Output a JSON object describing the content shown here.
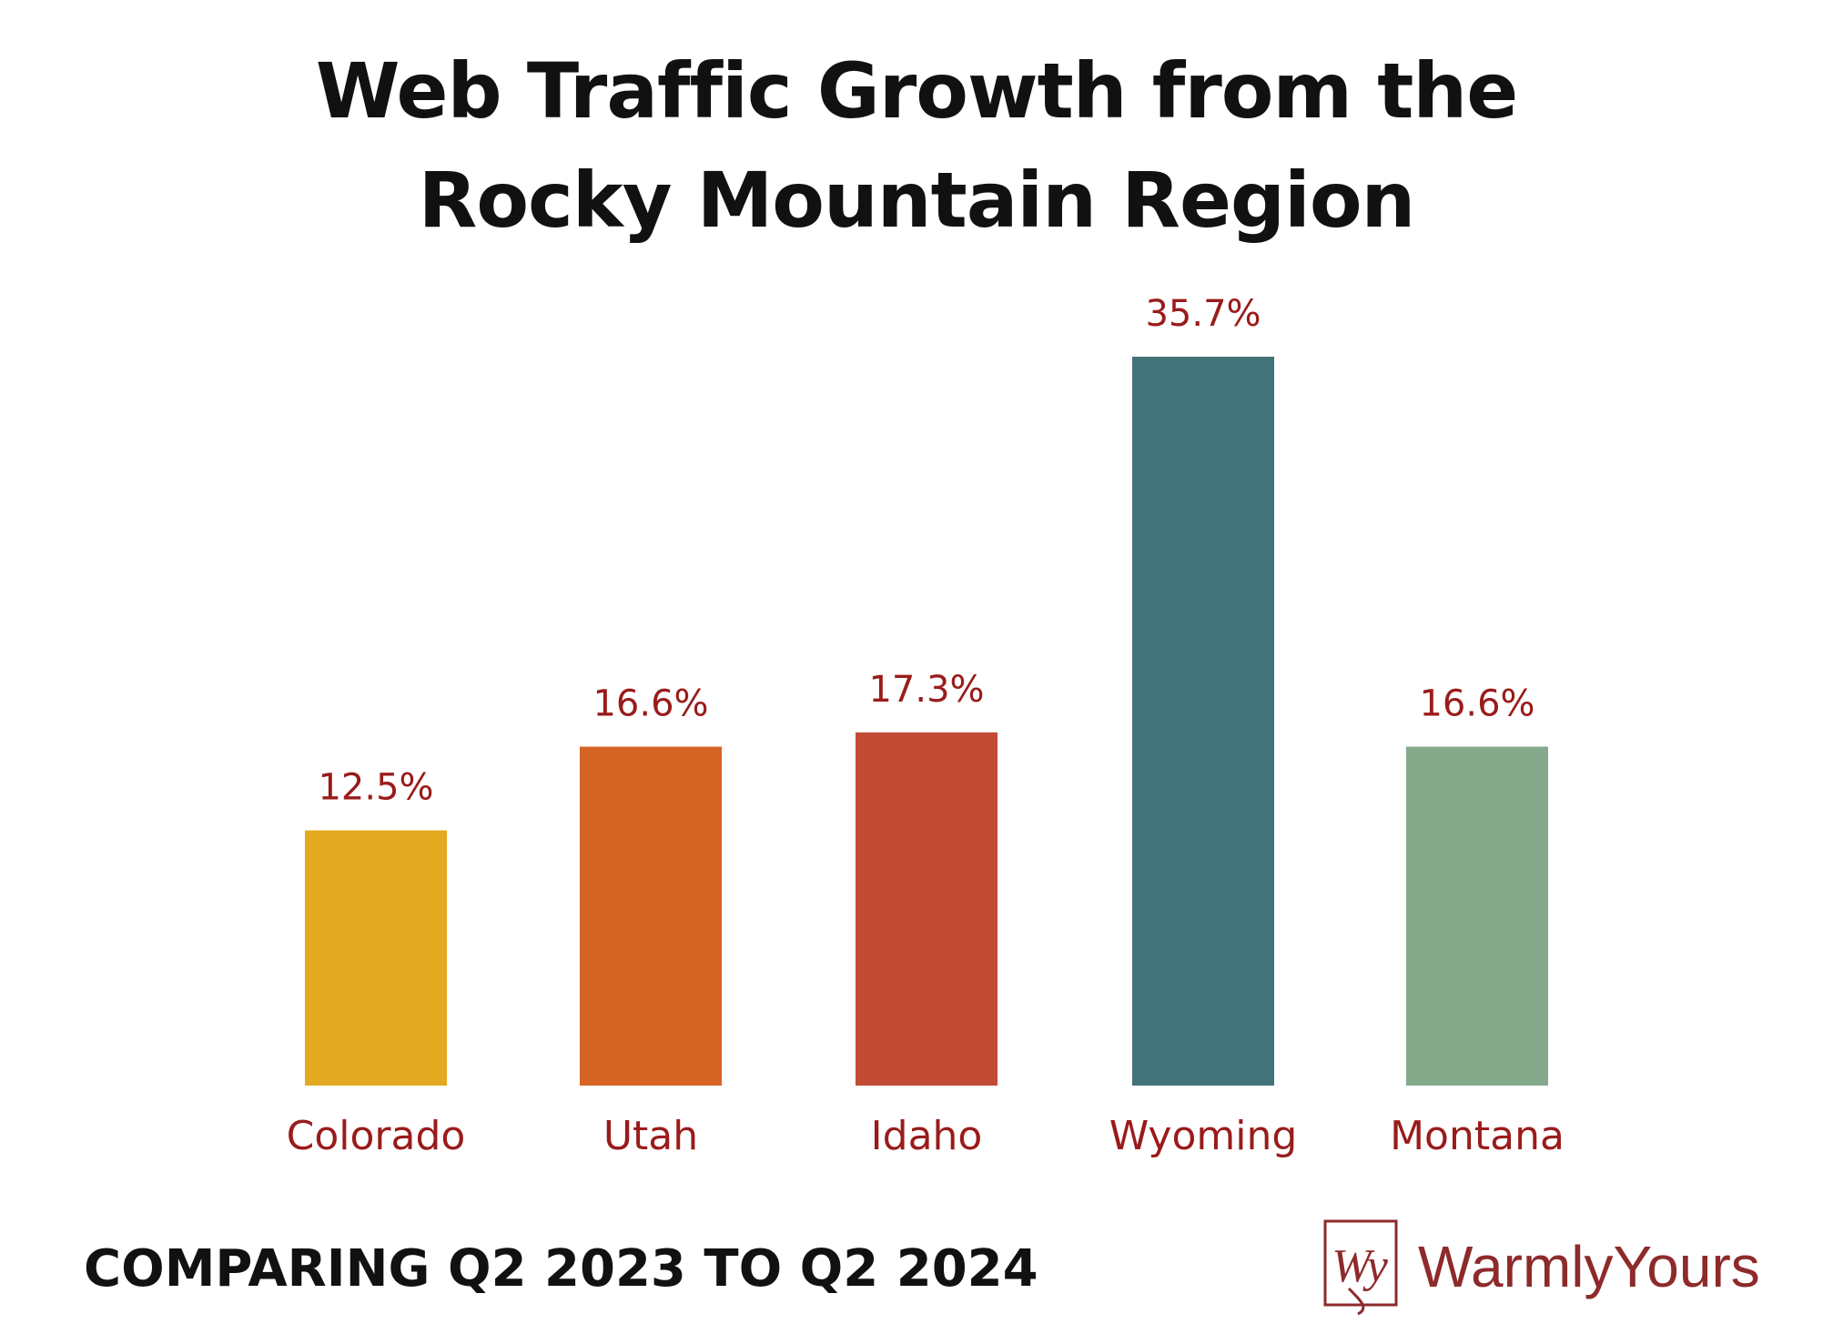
{
  "title_line1": "Web Traffic Growth from the",
  "title_line2": "Rocky Mountain Region",
  "subtitle": "COMPARING Q2 2023 TO Q2 2024",
  "logo": {
    "monogram": "Wy",
    "text": "WarmlyYours",
    "color": "#8e2a2b"
  },
  "label_color": "#9a1b1b",
  "chart_data": {
    "type": "bar",
    "categories": [
      "Colorado",
      "Utah",
      "Idaho",
      "Wyoming",
      "Montana"
    ],
    "values": [
      12.5,
      16.6,
      17.3,
      35.7,
      16.6
    ],
    "value_labels": [
      "12.5%",
      "16.6%",
      "17.3%",
      "35.7%",
      "16.6%"
    ],
    "colors": [
      "#e2a921",
      "#d56425",
      "#c14b34",
      "#417378",
      "#85aa8b"
    ],
    "title": "Web Traffic Growth from the Rocky Mountain Region",
    "xlabel": "",
    "ylabel": "",
    "ylim": [
      0,
      35.7
    ],
    "grid": false,
    "legend": "none"
  }
}
